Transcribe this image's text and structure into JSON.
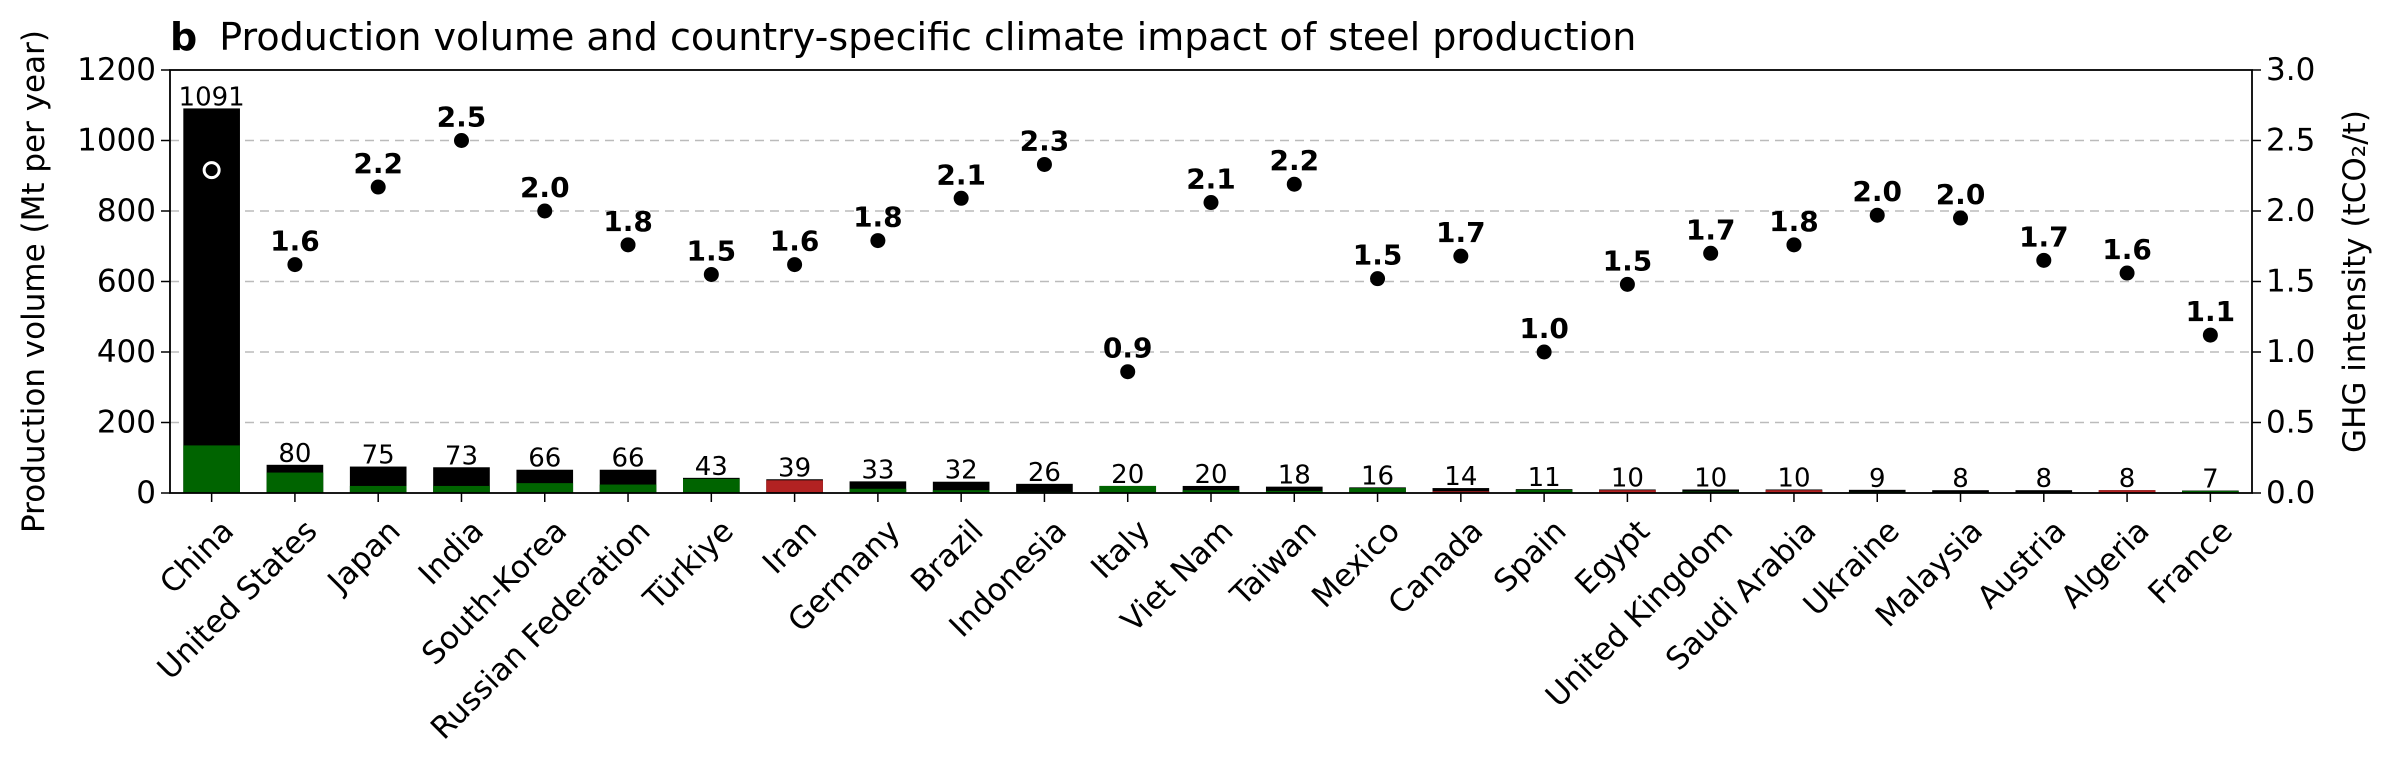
{
  "chart_data": {
    "type": "bar",
    "title_letter": "b",
    "title": "Production volume and country-specific climate impact of steel production",
    "ylabel": "Production volume (Mt per year)",
    "ylabel_right": "GHG intensity (tCO₂/t)",
    "ylim": [
      0,
      1200
    ],
    "ylim_right": [
      0,
      3.0
    ],
    "yticks": [
      "0",
      "200",
      "400",
      "600",
      "800",
      "1000",
      "1200"
    ],
    "yticks_right": [
      "0.0",
      "0.5",
      "1.0",
      "1.5",
      "2.0",
      "2.5",
      "3.0"
    ],
    "grid": "horizontal dashed",
    "categories": [
      "China",
      "United States",
      "Japan",
      "India",
      "South-Korea",
      "Russian Federation",
      "Türkiye",
      "Iran",
      "Germany",
      "Brazil",
      "Indonesia",
      "Italy",
      "Viet Nam",
      "Taiwan",
      "Mexico",
      "Canada",
      "Spain",
      "Egypt",
      "United Kingdom",
      "Saudi Arabia",
      "Ukraine",
      "Malaysia",
      "Austria",
      "Algeria",
      "France"
    ],
    "production_volume": [
      1091,
      80,
      75,
      73,
      66,
      66,
      43,
      39,
      33,
      32,
      26,
      20,
      20,
      18,
      16,
      14,
      11,
      10,
      10,
      10,
      9,
      8,
      8,
      8,
      7
    ],
    "production_volume_labels": [
      "1091",
      "80",
      "75",
      "73",
      "66",
      "66",
      "43",
      "39",
      "33",
      "32",
      "26",
      "20",
      "20",
      "18",
      "16",
      "14",
      "11",
      "10",
      "10",
      "10",
      "9",
      "8",
      "8",
      "8",
      "7"
    ],
    "highlighted_segment": [
      135,
      58,
      20,
      20,
      28,
      24,
      40,
      36,
      12,
      8,
      3,
      20,
      8,
      6,
      14,
      5,
      9,
      8,
      4,
      8,
      3,
      2,
      2,
      8,
      6
    ],
    "highlighted_segment_color": [
      "#006400",
      "#006400",
      "#006400",
      "#006400",
      "#006400",
      "#006400",
      "#006400",
      "#b22222",
      "#006400",
      "#006400",
      "#006400",
      "#006400",
      "#006400",
      "#006400",
      "#006400",
      "#b22222",
      "#006400",
      "#b22222",
      "#006400",
      "#b22222",
      "#006400",
      "#006400",
      "#006400",
      "#b22222",
      "#006400"
    ],
    "ghg_intensity": [
      2.29,
      1.62,
      2.17,
      2.5,
      2.0,
      1.76,
      1.55,
      1.62,
      1.79,
      2.09,
      2.33,
      0.86,
      2.06,
      2.19,
      1.52,
      1.68,
      1.0,
      1.48,
      1.7,
      1.76,
      1.97,
      1.95,
      1.65,
      1.56,
      1.12
    ],
    "ghg_intensity_labels": [
      "",
      "1.6",
      "2.2",
      "2.5",
      "2.0",
      "1.8",
      "1.5",
      "1.6",
      "1.8",
      "2.1",
      "2.3",
      "0.9",
      "2.1",
      "2.2",
      "1.5",
      "1.7",
      "1.0",
      "1.5",
      "1.7",
      "1.8",
      "2.0",
      "2.0",
      "1.7",
      "1.6",
      "1.1"
    ],
    "ghg_marker_style": [
      "hollow",
      "filled",
      "filled",
      "filled",
      "filled",
      "filled",
      "filled",
      "filled",
      "filled",
      "filled",
      "filled",
      "filled",
      "filled",
      "filled",
      "filled",
      "filled",
      "filled",
      "filled",
      "filled",
      "filled",
      "filled",
      "filled",
      "filled",
      "filled",
      "filled"
    ],
    "colors": {
      "bar": "#000000",
      "green": "#006400",
      "red": "#b22222",
      "grid": "#bbbbbb"
    }
  }
}
